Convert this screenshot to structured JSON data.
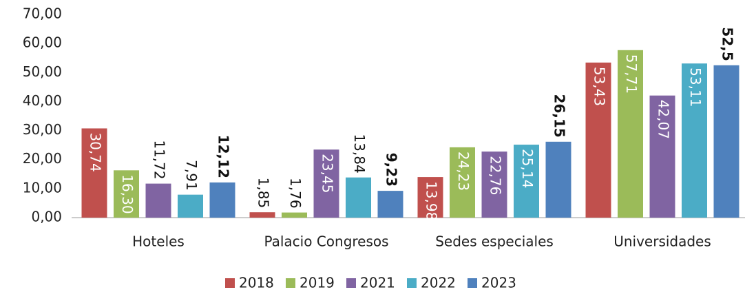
{
  "chart_data": {
    "type": "bar",
    "categories": [
      "Hoteles",
      "Palacio Congresos",
      "Sedes especiales",
      "Universidades"
    ],
    "series": [
      {
        "name": "2018",
        "color": "#c0504d",
        "values": [
          30.74,
          1.85,
          13.98,
          53.43
        ],
        "value_labels": [
          "30,74",
          "1,85",
          "13,98",
          "53,43"
        ]
      },
      {
        "name": "2019",
        "color": "#9bbb59",
        "values": [
          16.3,
          1.76,
          24.23,
          57.71
        ],
        "value_labels": [
          "16,30",
          "1,76",
          "24,23",
          "57,71"
        ]
      },
      {
        "name": "2021",
        "color": "#8064a2",
        "values": [
          11.72,
          23.45,
          22.76,
          42.07
        ],
        "value_labels": [
          "11,72",
          "23,45",
          "22,76",
          "42,07"
        ]
      },
      {
        "name": "2022",
        "color": "#4bacc6",
        "values": [
          7.91,
          13.84,
          25.14,
          53.11
        ],
        "value_labels": [
          "7,91",
          "13,84",
          "25,14",
          "53,11"
        ]
      },
      {
        "name": "2023",
        "color": "#4f81bd",
        "values": [
          12.12,
          9.23,
          26.15,
          52.5
        ],
        "value_labels": [
          "12,12",
          "9,23",
          "26,15",
          "52,5"
        ]
      }
    ],
    "ylim": [
      0,
      70
    ],
    "yticks": [
      {
        "value": 0,
        "label": "0,00"
      },
      {
        "value": 10,
        "label": "10,00"
      },
      {
        "value": 20,
        "label": "20,00"
      },
      {
        "value": 30,
        "label": "30,00"
      },
      {
        "value": 40,
        "label": "40,00"
      },
      {
        "value": 50,
        "label": "50,00"
      },
      {
        "value": 60,
        "label": "60,00"
      },
      {
        "value": 70,
        "label": "70,00"
      }
    ],
    "grid": false,
    "legend": "bottom"
  }
}
